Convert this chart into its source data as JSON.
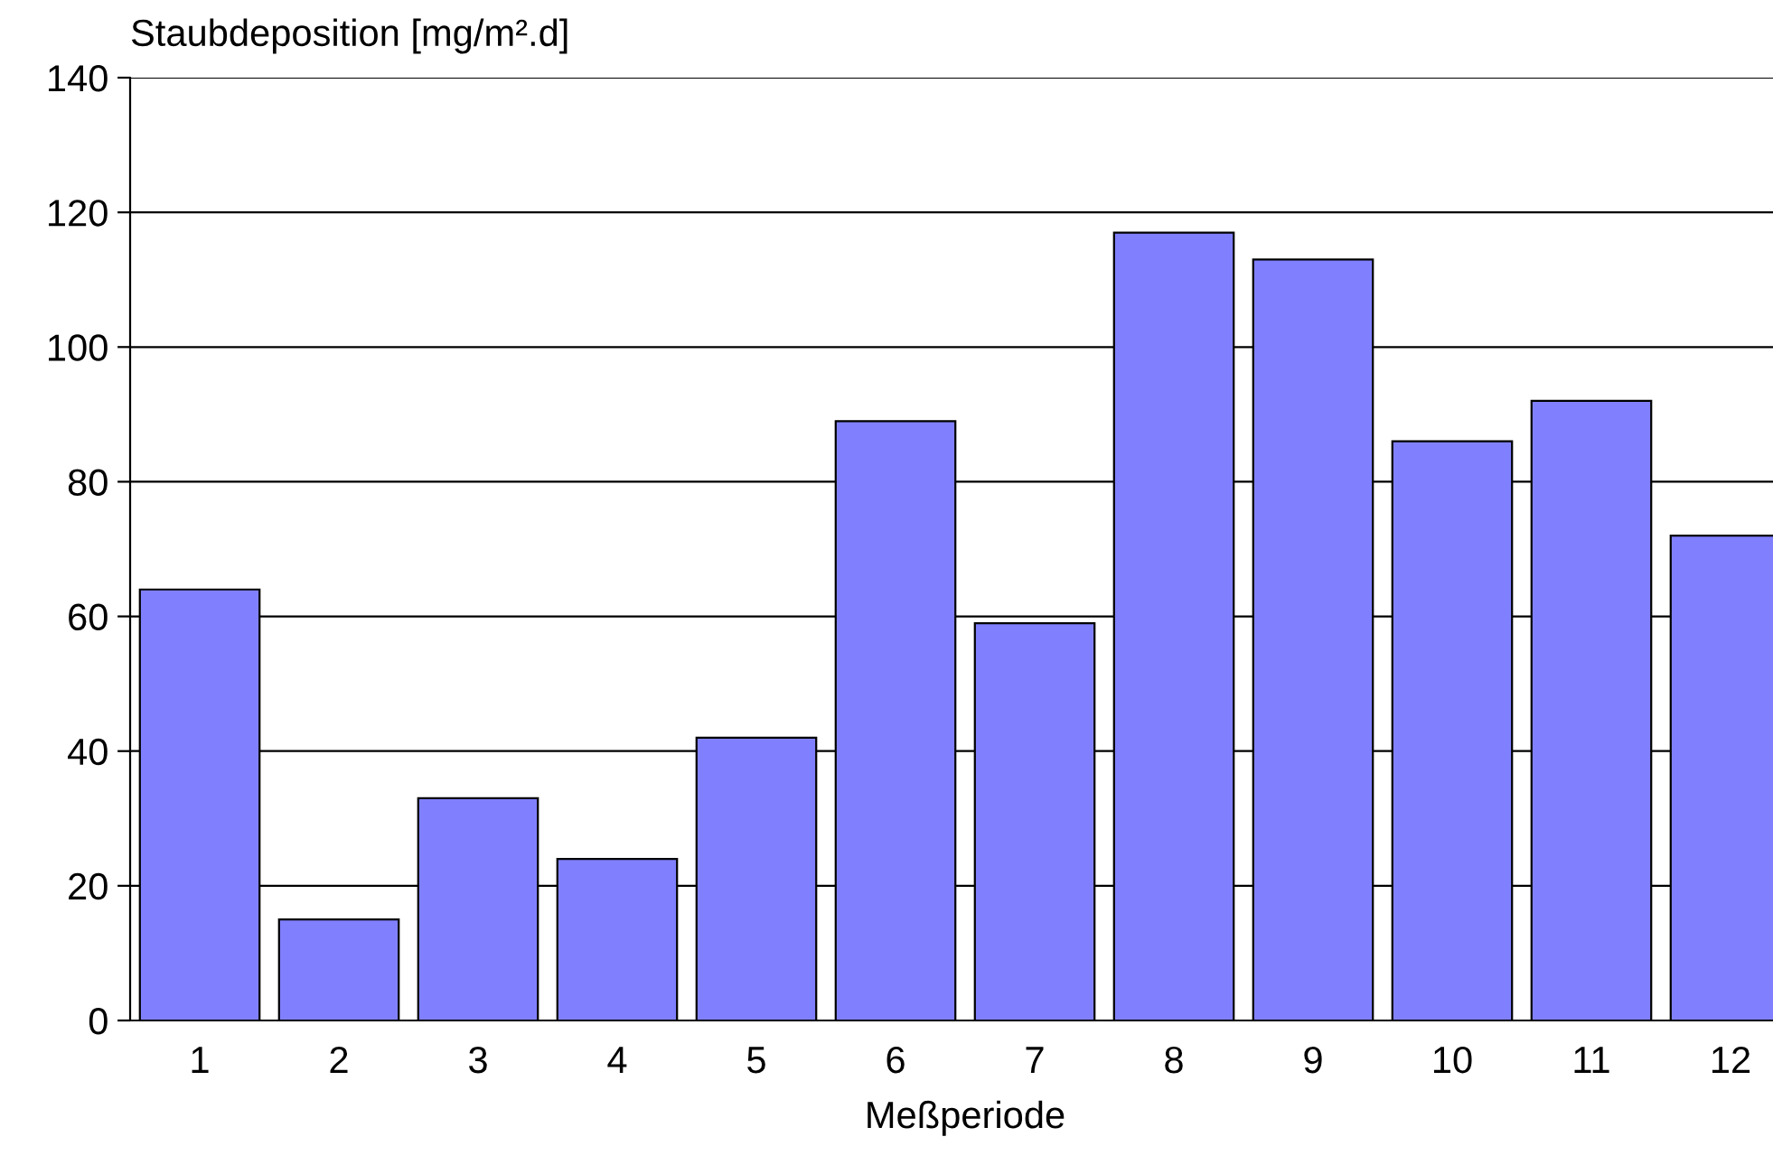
{
  "chart_data": {
    "type": "bar",
    "ylabel": "Staubdeposition [mg/m².d]",
    "xlabel": "Meßperiode",
    "categories": [
      "1",
      "2",
      "3",
      "4",
      "5",
      "6",
      "7",
      "8",
      "9",
      "10",
      "11",
      "12"
    ],
    "values": [
      64,
      15,
      33,
      24,
      42,
      89,
      59,
      117,
      113,
      86,
      92,
      72
    ],
    "color": "#8080ff",
    "ylim": [
      0,
      140
    ],
    "yticks": [
      0,
      20,
      40,
      60,
      80,
      100,
      120,
      140
    ],
    "grid": "y",
    "legend": false
  }
}
